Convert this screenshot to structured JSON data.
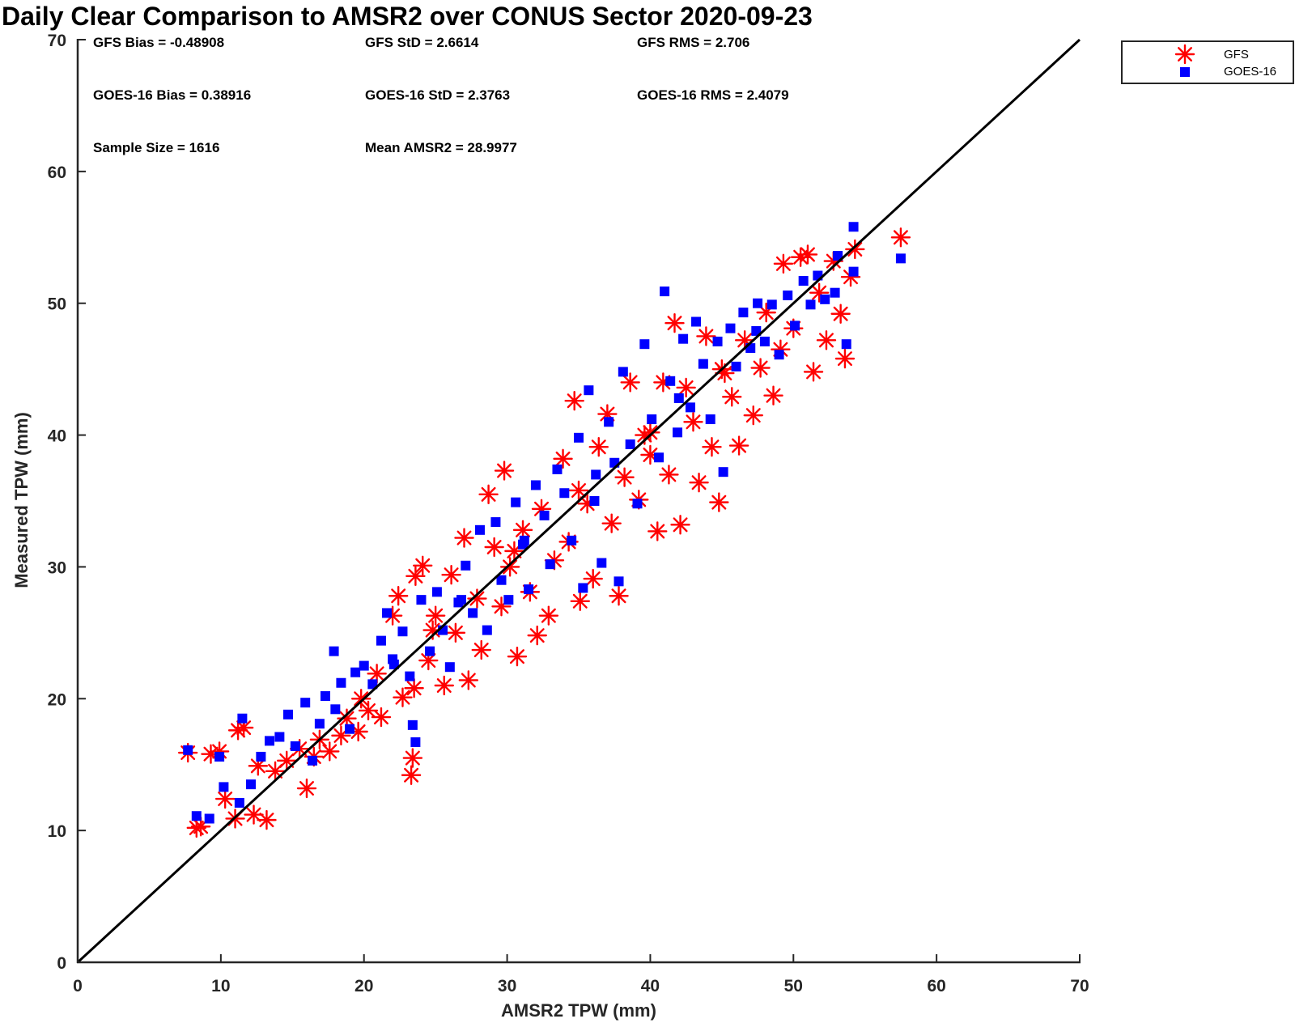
{
  "chart_data": {
    "type": "scatter",
    "title": "Daily Clear Comparison to AMSR2 over CONUS Sector 2020-09-23",
    "xlabel": "AMSR2 TPW (mm)",
    "ylabel": "Measured TPW (mm)",
    "xlim": [
      0,
      70
    ],
    "ylim": [
      0,
      70
    ],
    "xticks": [
      "0",
      "10",
      "20",
      "30",
      "40",
      "50",
      "60",
      "70"
    ],
    "yticks": [
      "0",
      "10",
      "20",
      "30",
      "40",
      "50",
      "60",
      "70"
    ],
    "grid": false,
    "legend_position": "outside top-right",
    "reference_line": "1:1",
    "stats": {
      "gfs_bias": "GFS Bias = -0.48908",
      "gfs_std": "GFS StD = 2.6614",
      "gfs_rms": "GFS RMS = 2.706",
      "goes_bias": "GOES-16 Bias = 0.38916",
      "goes_std": "GOES-16 StD = 2.3763",
      "goes_rms": "GOES-16 RMS = 2.4079",
      "sample_size": "Sample Size = 1616",
      "mean_amsr2": "Mean AMSR2 = 28.9977"
    },
    "series": [
      {
        "name": "GFS",
        "marker": "asterisk",
        "color": "#ff0000",
        "points": [
          [
            7.7,
            15.9
          ],
          [
            8.3,
            10.2
          ],
          [
            8.6,
            10.3
          ],
          [
            9.3,
            15.8
          ],
          [
            9.9,
            16.0
          ],
          [
            10.3,
            12.4
          ],
          [
            11.0,
            10.9
          ],
          [
            11.2,
            17.6
          ],
          [
            11.6,
            17.8
          ],
          [
            12.3,
            11.2
          ],
          [
            13.2,
            10.8
          ],
          [
            12.6,
            14.9
          ],
          [
            13.8,
            14.5
          ],
          [
            14.6,
            15.3
          ],
          [
            15.5,
            16.2
          ],
          [
            16.0,
            13.2
          ],
          [
            16.5,
            15.6
          ],
          [
            16.9,
            16.9
          ],
          [
            17.6,
            16.0
          ],
          [
            18.4,
            17.2
          ],
          [
            18.8,
            18.5
          ],
          [
            19.6,
            17.5
          ],
          [
            20.3,
            19.1
          ],
          [
            20.9,
            21.9
          ],
          [
            21.2,
            18.6
          ],
          [
            22.0,
            26.3
          ],
          [
            22.4,
            27.8
          ],
          [
            22.7,
            20.1
          ],
          [
            23.3,
            14.2
          ],
          [
            23.4,
            15.5
          ],
          [
            23.5,
            20.8
          ],
          [
            23.6,
            29.3
          ],
          [
            24.1,
            30.1
          ],
          [
            24.5,
            22.9
          ],
          [
            24.8,
            25.2
          ],
          [
            25.6,
            21.0
          ],
          [
            26.1,
            29.4
          ],
          [
            26.4,
            25.0
          ],
          [
            27.0,
            32.2
          ],
          [
            27.3,
            21.4
          ],
          [
            27.9,
            27.6
          ],
          [
            28.2,
            23.7
          ],
          [
            28.7,
            35.5
          ],
          [
            29.1,
            31.5
          ],
          [
            29.6,
            27.0
          ],
          [
            29.8,
            37.3
          ],
          [
            30.2,
            30.0
          ],
          [
            30.7,
            23.2
          ],
          [
            31.1,
            32.8
          ],
          [
            31.6,
            28.1
          ],
          [
            32.1,
            24.8
          ],
          [
            32.4,
            34.4
          ],
          [
            32.9,
            26.3
          ],
          [
            33.3,
            30.5
          ],
          [
            33.9,
            38.2
          ],
          [
            34.3,
            31.9
          ],
          [
            34.7,
            42.6
          ],
          [
            35.1,
            27.4
          ],
          [
            35.6,
            34.8
          ],
          [
            36.0,
            29.1
          ],
          [
            36.4,
            39.1
          ],
          [
            37.0,
            41.6
          ],
          [
            37.3,
            33.3
          ],
          [
            37.8,
            27.8
          ],
          [
            38.2,
            36.8
          ],
          [
            38.6,
            44.0
          ],
          [
            39.2,
            35.1
          ],
          [
            39.6,
            40.0
          ],
          [
            40.0,
            38.5
          ],
          [
            40.5,
            32.7
          ],
          [
            40.9,
            44.0
          ],
          [
            41.3,
            37.0
          ],
          [
            41.7,
            48.5
          ],
          [
            42.1,
            33.2
          ],
          [
            42.5,
            43.6
          ],
          [
            43.0,
            41.0
          ],
          [
            43.4,
            36.4
          ],
          [
            43.9,
            47.5
          ],
          [
            44.3,
            39.1
          ],
          [
            44.8,
            34.9
          ],
          [
            45.2,
            44.7
          ],
          [
            45.7,
            42.9
          ],
          [
            46.2,
            39.2
          ],
          [
            46.6,
            47.2
          ],
          [
            47.2,
            41.5
          ],
          [
            47.7,
            45.1
          ],
          [
            48.1,
            49.3
          ],
          [
            48.6,
            43.0
          ],
          [
            49.1,
            46.5
          ],
          [
            49.3,
            53.0
          ],
          [
            50.0,
            48.1
          ],
          [
            50.5,
            53.5
          ],
          [
            51.0,
            53.7
          ],
          [
            51.4,
            44.8
          ],
          [
            51.8,
            50.8
          ],
          [
            52.3,
            47.2
          ],
          [
            52.8,
            53.2
          ],
          [
            53.3,
            49.2
          ],
          [
            53.6,
            45.8
          ],
          [
            54.0,
            52.0
          ],
          [
            54.3,
            54.1
          ],
          [
            57.5,
            55.0
          ],
          [
            19.8,
            20.0
          ],
          [
            25.0,
            26.3
          ],
          [
            30.5,
            31.2
          ],
          [
            35.0,
            35.8
          ],
          [
            40.0,
            40.2
          ],
          [
            45.0,
            45.0
          ]
        ]
      },
      {
        "name": "GOES-16",
        "marker": "square",
        "color": "#0000ff",
        "points": [
          [
            7.7,
            16.1
          ],
          [
            8.3,
            11.1
          ],
          [
            9.2,
            10.9
          ],
          [
            9.9,
            15.6
          ],
          [
            10.2,
            13.3
          ],
          [
            11.3,
            12.1
          ],
          [
            11.5,
            18.5
          ],
          [
            12.1,
            13.5
          ],
          [
            12.8,
            15.6
          ],
          [
            13.4,
            16.8
          ],
          [
            14.1,
            17.1
          ],
          [
            14.7,
            18.8
          ],
          [
            15.2,
            16.4
          ],
          [
            15.9,
            19.7
          ],
          [
            16.4,
            15.3
          ],
          [
            16.9,
            18.1
          ],
          [
            17.3,
            20.2
          ],
          [
            17.9,
            23.6
          ],
          [
            18.4,
            21.2
          ],
          [
            19.0,
            17.7
          ],
          [
            19.4,
            22.0
          ],
          [
            20.0,
            22.5
          ],
          [
            20.6,
            21.1
          ],
          [
            21.2,
            24.4
          ],
          [
            21.6,
            26.5
          ],
          [
            22.1,
            22.6
          ],
          [
            22.7,
            25.1
          ],
          [
            23.2,
            21.7
          ],
          [
            23.4,
            18.0
          ],
          [
            23.6,
            16.7
          ],
          [
            24.0,
            27.5
          ],
          [
            24.6,
            23.6
          ],
          [
            25.1,
            28.1
          ],
          [
            25.5,
            25.2
          ],
          [
            26.0,
            22.4
          ],
          [
            26.6,
            27.3
          ],
          [
            27.1,
            30.1
          ],
          [
            27.6,
            26.5
          ],
          [
            28.1,
            32.8
          ],
          [
            28.6,
            25.2
          ],
          [
            29.2,
            33.4
          ],
          [
            29.6,
            29.0
          ],
          [
            30.1,
            27.5
          ],
          [
            30.6,
            34.9
          ],
          [
            31.1,
            31.7
          ],
          [
            31.5,
            28.3
          ],
          [
            32.0,
            36.2
          ],
          [
            32.6,
            33.9
          ],
          [
            33.0,
            30.2
          ],
          [
            33.5,
            37.4
          ],
          [
            34.0,
            35.6
          ],
          [
            34.5,
            32.0
          ],
          [
            35.0,
            39.8
          ],
          [
            35.3,
            28.4
          ],
          [
            35.7,
            43.4
          ],
          [
            36.1,
            35.0
          ],
          [
            36.6,
            30.3
          ],
          [
            37.1,
            41.0
          ],
          [
            37.5,
            37.9
          ],
          [
            37.8,
            28.9
          ],
          [
            38.1,
            44.8
          ],
          [
            38.6,
            39.3
          ],
          [
            39.1,
            34.8
          ],
          [
            39.6,
            46.9
          ],
          [
            40.1,
            41.2
          ],
          [
            40.6,
            38.3
          ],
          [
            41.0,
            50.9
          ],
          [
            41.4,
            44.1
          ],
          [
            41.9,
            40.2
          ],
          [
            42.3,
            47.3
          ],
          [
            42.8,
            42.1
          ],
          [
            43.2,
            48.6
          ],
          [
            43.7,
            45.4
          ],
          [
            44.2,
            41.2
          ],
          [
            44.7,
            47.1
          ],
          [
            45.1,
            37.2
          ],
          [
            45.6,
            48.1
          ],
          [
            46.0,
            45.2
          ],
          [
            46.5,
            49.3
          ],
          [
            47.0,
            46.6
          ],
          [
            47.5,
            50.0
          ],
          [
            48.0,
            47.1
          ],
          [
            48.5,
            49.9
          ],
          [
            49.0,
            46.1
          ],
          [
            49.6,
            50.6
          ],
          [
            50.1,
            48.3
          ],
          [
            50.7,
            51.7
          ],
          [
            51.2,
            49.9
          ],
          [
            51.7,
            52.1
          ],
          [
            52.2,
            50.3
          ],
          [
            52.9,
            50.8
          ],
          [
            53.1,
            53.6
          ],
          [
            53.7,
            46.9
          ],
          [
            54.2,
            52.4
          ],
          [
            54.2,
            55.8
          ],
          [
            57.5,
            53.4
          ],
          [
            18.0,
            19.2
          ],
          [
            22.0,
            23.0
          ],
          [
            26.8,
            27.5
          ],
          [
            31.2,
            32.0
          ],
          [
            36.2,
            37.0
          ],
          [
            42.0,
            42.8
          ],
          [
            47.4,
            47.9
          ]
        ]
      }
    ]
  }
}
